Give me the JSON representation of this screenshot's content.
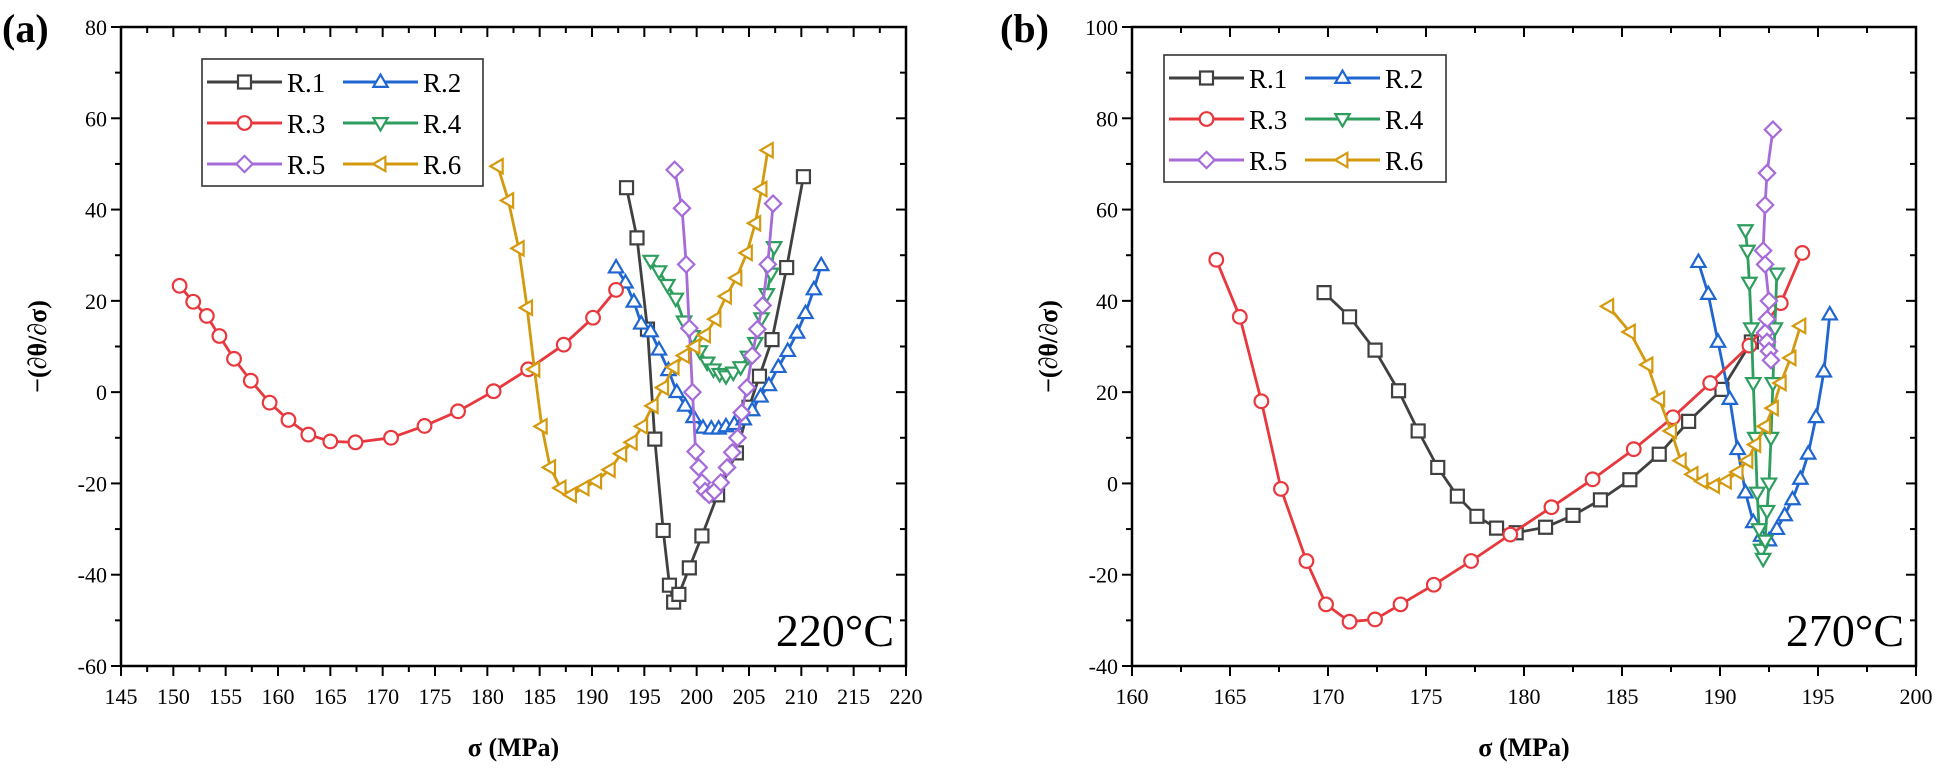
{
  "figure": {
    "panels": [
      "a",
      "b"
    ]
  },
  "chart_data": [
    {
      "type": "line",
      "panel_label": "(a)",
      "annotation": "220°C",
      "title": "",
      "xlabel": "σ (MPa)",
      "ylabel": "−(∂θ/∂σ)",
      "xlim": [
        145,
        220
      ],
      "ylim": [
        -60,
        80
      ],
      "xticks": [
        145,
        150,
        155,
        160,
        165,
        170,
        175,
        180,
        185,
        190,
        195,
        200,
        205,
        210,
        215,
        220
      ],
      "xtick_labels": [
        "145",
        "150",
        "155",
        "160",
        "165",
        "170",
        "175",
        "180",
        "185",
        "190",
        "195",
        "200",
        "205",
        "210",
        "215",
        "220"
      ],
      "yticks": [
        -60,
        -40,
        -20,
        0,
        20,
        40,
        60,
        80
      ],
      "ytick_labels": [
        "-60",
        "-40",
        "-20",
        "0",
        "20",
        "40",
        "60",
        "80"
      ],
      "grid": false,
      "legend": "top-left",
      "series": [
        {
          "name": "R.1",
          "color": "#404040",
          "marker": "square",
          "x": [
            193.3,
            194.3,
            195.3,
            196.0,
            196.8,
            197.4,
            197.8,
            198.3,
            199.3,
            200.5,
            202.0,
            203.8,
            205.0,
            206.0,
            207.2,
            208.6,
            210.2
          ],
          "y": [
            44.8,
            33.8,
            13.8,
            -10.3,
            -30.3,
            -42.3,
            -46.0,
            -44.3,
            -38.5,
            -31.5,
            -22.5,
            -13.3,
            -3.3,
            3.5,
            11.5,
            27.3,
            47.2
          ]
        },
        {
          "name": "R.2",
          "color": "#1F66D1",
          "marker": "triangle-up",
          "x": [
            192.3,
            193.2,
            194.0,
            194.7,
            195.6,
            196.4,
            197.3,
            198.1,
            198.9,
            199.7,
            200.6,
            201.4,
            202.1,
            202.8,
            203.6,
            204.5,
            205.3,
            206.1,
            206.9,
            207.8,
            208.7,
            209.6,
            210.4,
            211.2,
            211.9
          ],
          "y": [
            27.3,
            24.0,
            19.8,
            15.0,
            13.3,
            9.3,
            4.8,
            0.0,
            -3.0,
            -5.5,
            -7.8,
            -8.0,
            -8.0,
            -7.5,
            -7.0,
            -6.0,
            -4.0,
            -1.0,
            1.5,
            5.5,
            9.0,
            13.0,
            17.3,
            22.5,
            27.8
          ]
        },
        {
          "name": "R.3",
          "color": "#E8383D",
          "marker": "circle",
          "x": [
            150.6,
            151.9,
            153.2,
            154.4,
            155.8,
            157.4,
            159.2,
            161.0,
            162.9,
            165.0,
            167.4,
            170.8,
            174.0,
            177.2,
            180.6,
            183.9,
            187.3,
            190.1,
            192.3
          ],
          "y": [
            23.3,
            19.8,
            16.7,
            12.3,
            7.3,
            2.5,
            -2.3,
            -6.1,
            -9.3,
            -10.8,
            -11.0,
            -10.0,
            -7.4,
            -4.2,
            0.2,
            5.0,
            10.4,
            16.3,
            22.4
          ]
        },
        {
          "name": "R.4",
          "color": "#2E9E5F",
          "marker": "triangle-down",
          "x": [
            195.6,
            196.4,
            197.2,
            198.0,
            198.8,
            199.6,
            200.3,
            201.0,
            201.6,
            202.2,
            202.8,
            203.5,
            204.2,
            204.9,
            205.6,
            206.2,
            206.7,
            207.1,
            207.4
          ],
          "y": [
            28.8,
            26.5,
            23.5,
            20.5,
            15.5,
            12.3,
            9.0,
            6.5,
            5.0,
            4.0,
            3.5,
            4.3,
            5.5,
            7.8,
            10.8,
            16.2,
            21.5,
            26.0,
            31.8
          ]
        },
        {
          "name": "R.5",
          "color": "#A56BD8",
          "marker": "diamond",
          "x": [
            197.9,
            198.6,
            199.0,
            199.3,
            199.6,
            199.9,
            200.2,
            200.5,
            200.8,
            201.2,
            201.7,
            202.3,
            202.9,
            203.4,
            203.9,
            204.3,
            204.8,
            205.3,
            205.8,
            206.3,
            206.8,
            207.3
          ],
          "y": [
            48.7,
            40.3,
            28.0,
            14.0,
            0.0,
            -13.0,
            -16.5,
            -19.8,
            -21.7,
            -22.5,
            -21.7,
            -19.8,
            -16.5,
            -13.2,
            -10.0,
            -4.5,
            1.0,
            8.0,
            13.8,
            19.0,
            28.0,
            41.3
          ]
        },
        {
          "name": "R.6",
          "color": "#D49A0F",
          "marker": "triangle-left",
          "x": [
            181.0,
            182.0,
            183.0,
            183.8,
            184.5,
            185.2,
            186.0,
            187.0,
            188.0,
            189.2,
            190.4,
            191.7,
            192.8,
            193.8,
            194.8,
            195.8,
            196.8,
            197.8,
            198.8,
            199.8,
            200.8,
            201.8,
            202.8,
            203.8,
            204.8,
            205.6,
            206.2,
            206.8
          ],
          "y": [
            49.5,
            42.0,
            31.5,
            18.5,
            5.0,
            -7.5,
            -16.5,
            -21.0,
            -22.5,
            -21.0,
            -19.5,
            -17.0,
            -13.5,
            -11.0,
            -7.5,
            -3.0,
            1.0,
            5.5,
            8.0,
            10.0,
            12.5,
            16.0,
            21.0,
            25.0,
            30.5,
            37.0,
            44.5,
            53.0
          ]
        }
      ]
    },
    {
      "type": "line",
      "panel_label": "(b)",
      "annotation": "270°C",
      "title": "",
      "xlabel": "σ (MPa)",
      "ylabel": "−(∂θ/∂σ)",
      "xlim": [
        160,
        200
      ],
      "ylim": [
        -40,
        100
      ],
      "xticks": [
        160,
        165,
        170,
        175,
        180,
        185,
        190,
        195,
        200
      ],
      "xtick_labels": [
        "160",
        "165",
        "170",
        "175",
        "180",
        "185",
        "190",
        "195",
        "200"
      ],
      "yticks": [
        -40,
        -20,
        0,
        20,
        40,
        60,
        80,
        100
      ],
      "ytick_labels": [
        "-40",
        "-20",
        "0",
        "20",
        "40",
        "60",
        "80",
        "100"
      ],
      "grid": false,
      "legend": "top-left",
      "series": [
        {
          "name": "R.1",
          "color": "#404040",
          "marker": "square",
          "x": [
            169.8,
            171.1,
            172.4,
            173.6,
            174.6,
            175.6,
            176.6,
            177.6,
            178.6,
            179.6,
            181.1,
            182.5,
            183.9,
            185.4,
            186.9,
            188.4,
            190.1,
            191.6
          ],
          "y": [
            41.8,
            36.5,
            29.2,
            20.3,
            11.5,
            3.5,
            -2.8,
            -7.2,
            -9.8,
            -10.8,
            -9.6,
            -7.0,
            -3.6,
            0.8,
            6.4,
            13.6,
            20.6,
            31.0
          ]
        },
        {
          "name": "R.2",
          "color": "#1F66D1",
          "marker": "triangle-up",
          "x": [
            188.9,
            189.4,
            189.9,
            190.5,
            190.9,
            191.3,
            191.7,
            192.1,
            192.5,
            192.9,
            193.3,
            193.7,
            194.1,
            194.5,
            194.9,
            195.3,
            195.6
          ],
          "y": [
            48.5,
            41.5,
            31.0,
            18.5,
            7.5,
            -2.0,
            -8.5,
            -11.5,
            -12.5,
            -10.0,
            -7.0,
            -3.5,
            1.0,
            6.5,
            14.5,
            24.5,
            37.0
          ]
        },
        {
          "name": "R.3",
          "color": "#E8383D",
          "marker": "circle",
          "x": [
            164.3,
            165.5,
            166.6,
            167.6,
            168.9,
            169.9,
            171.1,
            172.4,
            173.7,
            175.4,
            177.3,
            179.3,
            181.4,
            183.5,
            185.6,
            187.6,
            189.5,
            191.5,
            193.1,
            194.2
          ],
          "y": [
            49.0,
            36.5,
            18.0,
            -1.2,
            -17.0,
            -26.5,
            -30.3,
            -29.8,
            -26.5,
            -22.2,
            -17.0,
            -11.2,
            -5.2,
            0.9,
            7.5,
            14.5,
            22.0,
            30.2,
            39.5,
            50.5
          ]
        },
        {
          "name": "R.4",
          "color": "#2E9E5F",
          "marker": "triangle-down",
          "x": [
            191.3,
            191.4,
            191.5,
            191.6,
            191.7,
            191.8,
            191.9,
            192.0,
            192.1,
            192.2,
            192.3,
            192.4,
            192.5,
            192.6,
            192.7,
            192.8,
            192.9
          ],
          "y": [
            55.5,
            51.0,
            44.0,
            34.0,
            22.0,
            10.0,
            -2.0,
            -10.0,
            -14.5,
            -16.5,
            -12.5,
            -6.0,
            0.0,
            10.0,
            22.0,
            34.0,
            46.0
          ]
        },
        {
          "name": "R.5",
          "color": "#A56BD8",
          "marker": "diamond",
          "x": [
            192.7,
            192.4,
            192.3,
            192.2,
            192.3,
            192.5,
            192.4,
            192.3,
            192.4,
            192.5,
            192.6
          ],
          "y": [
            77.5,
            68.0,
            61.0,
            51.0,
            48.0,
            40.0,
            36.0,
            33.0,
            31.0,
            29.0,
            27.0
          ]
        },
        {
          "name": "R.6",
          "color": "#D49A0F",
          "marker": "triangle-left",
          "x": [
            184.3,
            185.4,
            186.3,
            186.9,
            187.5,
            188.0,
            188.6,
            189.1,
            189.7,
            190.3,
            190.9,
            191.4,
            191.8,
            192.3,
            192.7,
            193.1,
            193.6,
            194.1
          ],
          "y": [
            38.8,
            33.2,
            26.0,
            18.5,
            11.5,
            5.0,
            2.0,
            0.5,
            -0.5,
            0.5,
            2.5,
            5.0,
            8.5,
            12.5,
            16.5,
            22.0,
            27.5,
            34.5
          ]
        }
      ]
    }
  ]
}
